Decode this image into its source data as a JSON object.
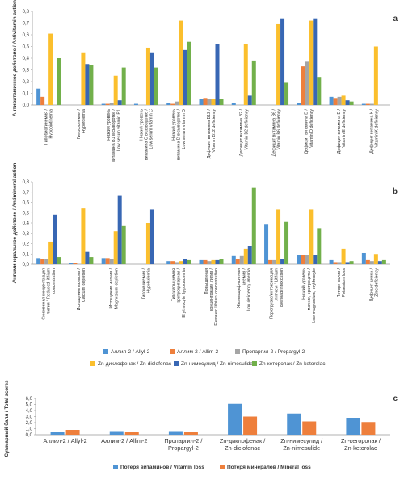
{
  "colors": {
    "allyl2": "#4f94d4",
    "allim2": "#ee7f3c",
    "propargyl2": "#a5a5a5",
    "zn_diclofenac": "#fbbf2d",
    "zn_nimesulide": "#3867b4",
    "zn_ketorolac": "#72b04b",
    "axis": "#999999",
    "text": "#333333"
  },
  "chart_data": [
    {
      "panel": "a",
      "type": "bar",
      "ylabel": "Антивитаминное действие / Antivitamin action",
      "ylim": [
        0,
        0.8
      ],
      "yticks": [
        "0,0",
        "0,1",
        "0,2",
        "0,3",
        "0,4",
        "0,5",
        "0,6",
        "0,7",
        "0,8"
      ],
      "categories": [
        [
          "Гипобиотинемия /",
          "Hypobiotinemia"
        ],
        [
          "Гипофолемия /",
          "Hypofolemia"
        ],
        [
          "Низкий уровень",
          "витамина В1 в сыворотке /",
          "Low serum vitamin B1"
        ],
        [
          "Низкий уровень",
          "витамина С в сыворотке /",
          "Low serum vitamin C"
        ],
        [
          "Низкий уровень",
          "витамина D в сыворотке /",
          "Low serum vitamin D"
        ],
        [
          "Дефицит витамина В12 /",
          "Vitamin B12 deficiency"
        ],
        [
          "Дефицит витамина В2 /",
          "Vitamin B2 deficiency"
        ],
        [
          "Дефицит витамина В6 /",
          "Vitamin B6 deficiency"
        ],
        [
          "Дефицит витамина D /",
          "Vitamin D deficiency"
        ],
        [
          "Дефицит витамина Е /",
          "Vitamin E deficiency"
        ],
        [
          "Дефицит витамина К /",
          "Vitamin K deficiency"
        ]
      ],
      "series": [
        {
          "key": "allyl2",
          "values": [
            0.14,
            0.0,
            0.01,
            0.01,
            0.02,
            0.05,
            0.02,
            0.0,
            0.02,
            0.07,
            0.01
          ]
        },
        {
          "key": "allim2",
          "values": [
            0.07,
            0.0,
            0.01,
            0.0,
            0.01,
            0.06,
            0.0,
            0.0,
            0.33,
            0.06,
            0.01
          ]
        },
        {
          "key": "propargyl2",
          "values": [
            0.0,
            0.0,
            0.02,
            0.0,
            0.03,
            0.05,
            0.0,
            0.0,
            0.37,
            0.07,
            0.01
          ]
        },
        {
          "key": "zn_diclofenac",
          "values": [
            0.61,
            0.45,
            0.25,
            0.49,
            0.72,
            0.05,
            0.52,
            0.69,
            0.72,
            0.08,
            0.5
          ]
        },
        {
          "key": "zn_nimesulide",
          "values": [
            0.0,
            0.35,
            0.04,
            0.45,
            0.47,
            0.52,
            0.08,
            0.74,
            0.74,
            0.04,
            0.0
          ]
        },
        {
          "key": "zn_ketorolac",
          "values": [
            0.4,
            0.34,
            0.32,
            0.32,
            0.54,
            0.05,
            0.38,
            0.19,
            0.24,
            0.03,
            0.0
          ]
        }
      ]
    },
    {
      "panel": "b",
      "type": "bar",
      "ylabel": "Антиминеральное действие / Antimineral action",
      "ylim": [
        0,
        0.8
      ],
      "yticks": [
        "0,0",
        "0,1",
        "0,2",
        "0,3",
        "0,4",
        "0,5",
        "0,6",
        "0,7",
        "0,8"
      ],
      "categories": [
        [
          "Сниженная концентрация",
          "лития / Reduced lithium",
          "concentration"
        ],
        [
          "Истощение кальция /",
          "Calcium depletion"
        ],
        [
          "Истощение магния /",
          "Magnesium depletion"
        ],
        [
          "Гипокалиемия /",
          "Hypokalemia"
        ],
        [
          "Гипокальциемия",
          "эритроцитарная /",
          "Erythrocyte hypocalcemia"
        ],
        [
          "Повышенная",
          "концентрация лития /",
          "Elevated lithium concentration"
        ],
        [
          "Железодефицитная",
          "анемия /",
          "Iron deficiency anemia"
        ],
        [
          "Перегрузка/интоксикация",
          "литием / Lithium",
          "overload/intoxication"
        ],
        [
          "Низкий уровень",
          "магния, эритроциты /",
          "Low magnesium, erythrocyte"
        ],
        [
          "Потеря калия /",
          "Potassium loss"
        ],
        [
          "Дефицит цинка /",
          "Zinc deficiency"
        ]
      ],
      "series": [
        {
          "key": "allyl2",
          "values": [
            0.06,
            0.01,
            0.06,
            0.0,
            0.03,
            0.04,
            0.08,
            0.39,
            0.09,
            0.04,
            0.11
          ]
        },
        {
          "key": "allim2",
          "values": [
            0.05,
            0.01,
            0.06,
            0.0,
            0.03,
            0.04,
            0.05,
            0.04,
            0.09,
            0.02,
            0.04
          ]
        },
        {
          "key": "propargyl2",
          "values": [
            0.05,
            0.0,
            0.05,
            0.0,
            0.02,
            0.03,
            0.08,
            0.04,
            0.09,
            0.02,
            0.03
          ]
        },
        {
          "key": "zn_diclofenac",
          "values": [
            0.22,
            0.54,
            0.32,
            0.4,
            0.03,
            0.04,
            0.15,
            0.53,
            0.53,
            0.15,
            0.1
          ]
        },
        {
          "key": "zn_nimesulide",
          "values": [
            0.48,
            0.12,
            0.67,
            0.53,
            0.05,
            0.04,
            0.18,
            0.05,
            0.09,
            0.02,
            0.03
          ]
        },
        {
          "key": "zn_ketorolac",
          "values": [
            0.07,
            0.07,
            0.37,
            0.0,
            0.04,
            0.05,
            0.74,
            0.41,
            0.35,
            0.03,
            0.04
          ]
        }
      ]
    },
    {
      "panel": "c",
      "type": "bar",
      "ylabel": "Суммарный балл / Total scores",
      "ylim": [
        0,
        6
      ],
      "yticks": [
        "0,0",
        "1,0",
        "2,0",
        "3,0",
        "4,0",
        "5,0",
        "6,0"
      ],
      "categories": [
        [
          "Аллил-2 / Allyl-2"
        ],
        [
          "Аллим-2 / Allim-2"
        ],
        [
          "Пропаргил-2 /",
          "Propargyl-2"
        ],
        [
          "Zn-диклофенак /",
          "Zn-diclofenac"
        ],
        [
          "Zn-нимесулид /",
          "Zn-nimesulide"
        ],
        [
          "Zn-кеторолак /",
          "Zn-ketorolac"
        ]
      ],
      "series": [
        {
          "key": "vitamin_loss",
          "name": "Потеря витаминов / Vitamin loss",
          "color": "#4f94d4",
          "values": [
            0.4,
            0.6,
            0.6,
            5.1,
            3.5,
            2.8
          ]
        },
        {
          "key": "mineral_loss",
          "name": "Потеря минералов / Mineral loss",
          "color": "#ee7f3c",
          "values": [
            0.8,
            0.4,
            0.5,
            3.0,
            2.2,
            2.1
          ]
        }
      ]
    }
  ],
  "legend_ab": [
    {
      "key": "allyl2",
      "label": "Аллил-2 / Allyl-2"
    },
    {
      "key": "allim2",
      "label": "Аллим-2 / Allim-2"
    },
    {
      "key": "propargyl2",
      "label": "Пропаргил-2 / Propargyl-2"
    },
    {
      "key": "zn_diclofenac",
      "label": "Zn-диклофенак / Zn-diclofenac"
    },
    {
      "key": "zn_nimesulide",
      "label": "Zn-нимесулид / Zn-nimesulide"
    },
    {
      "key": "zn_ketorolac",
      "label": "Zn-кеторолак / Zn-ketorolac"
    }
  ],
  "panel_letters": [
    "a",
    "b",
    "c"
  ]
}
